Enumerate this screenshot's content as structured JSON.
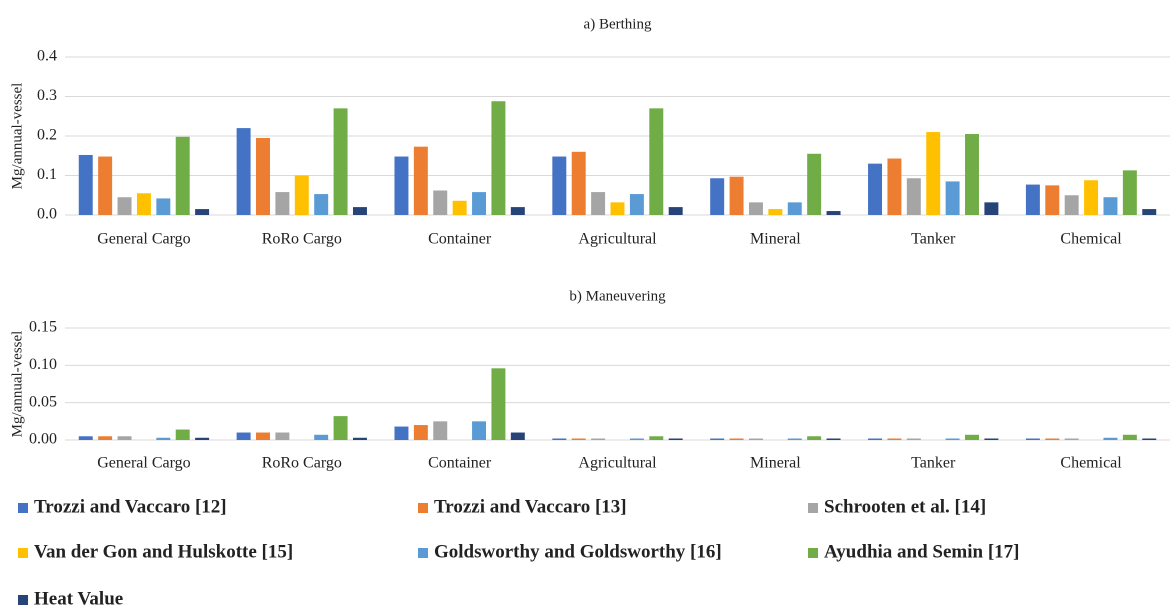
{
  "chart_data": [
    {
      "type": "bar",
      "title": "a) Berthing",
      "ylabel": "Mg/annual-vessel",
      "categories": [
        "General Cargo",
        "RoRo Cargo",
        "Container",
        "Agricultural",
        "Mineral",
        "Tanker",
        "Chemical"
      ],
      "series": [
        {
          "name": "Trozzi and Vaccaro [12]",
          "color": "#4472c4",
          "values": [
            0.152,
            0.22,
            0.148,
            0.148,
            0.093,
            0.13,
            0.077
          ]
        },
        {
          "name": "Trozzi and Vaccaro [13]",
          "color": "#ed7d31",
          "values": [
            0.148,
            0.195,
            0.173,
            0.16,
            0.097,
            0.143,
            0.075
          ]
        },
        {
          "name": "Schrooten et al. [14]",
          "color": "#a5a5a5",
          "values": [
            0.045,
            0.058,
            0.062,
            0.058,
            0.032,
            0.093,
            0.05
          ]
        },
        {
          "name": "Van der Gon and Hulskotte [15]",
          "color": "#ffc000",
          "values": [
            0.055,
            0.1,
            0.036,
            0.032,
            0.015,
            0.21,
            0.088
          ]
        },
        {
          "name": "Goldsworthy and Goldsworthy [16]",
          "color": "#5b9bd5",
          "values": [
            0.042,
            0.053,
            0.058,
            0.053,
            0.032,
            0.085,
            0.045
          ]
        },
        {
          "name": "Ayudhia and Semin [17]",
          "color": "#70ad47",
          "values": [
            0.198,
            0.27,
            0.288,
            0.27,
            0.155,
            0.205,
            0.113
          ]
        },
        {
          "name": "Heat Value",
          "color": "#264478",
          "values": [
            0.015,
            0.02,
            0.02,
            0.02,
            0.01,
            0.032,
            0.015
          ]
        }
      ],
      "ylim": [
        0,
        0.4
      ],
      "yticks": [
        {
          "value": 0,
          "label": "0.0"
        },
        0.1,
        0.2,
        0.3,
        0.4
      ],
      "grid": true
    },
    {
      "type": "bar",
      "title": "b) Maneuvering",
      "ylabel": "Mg/annual-vessel",
      "categories": [
        "General Cargo",
        "RoRo Cargo",
        "Container",
        "Agricultural",
        "Mineral",
        "Tanker",
        "Chemical"
      ],
      "series": [
        {
          "values": [
            0.005,
            0.01,
            0.018,
            0.002,
            0.002,
            0.002,
            0.002
          ]
        },
        {
          "values": [
            0.005,
            0.01,
            0.02,
            0.002,
            0.002,
            0.002,
            0.002
          ]
        },
        {
          "values": [
            0.005,
            0.01,
            0.025,
            0.002,
            0.002,
            0.002,
            0.002
          ]
        },
        {
          "values": [
            0,
            0,
            0,
            0,
            0,
            0,
            0
          ]
        },
        {
          "values": [
            0.003,
            0.007,
            0.025,
            0.002,
            0.002,
            0.002,
            0.003
          ]
        },
        {
          "values": [
            0.014,
            0.032,
            0.096,
            0.005,
            0.005,
            0.007,
            0.007
          ]
        },
        {
          "values": [
            0.003,
            0.003,
            0.01,
            0.002,
            0.002,
            0.002,
            0.002
          ]
        }
      ],
      "ylim": [
        0,
        0.15
      ],
      "yticks": [
        {
          "value": 0,
          "label": "0.00"
        },
        {
          "value": 0.05,
          "label": "0.05"
        },
        {
          "value": 0.1,
          "label": "0.10"
        },
        0.15
      ],
      "grid": true
    }
  ]
}
